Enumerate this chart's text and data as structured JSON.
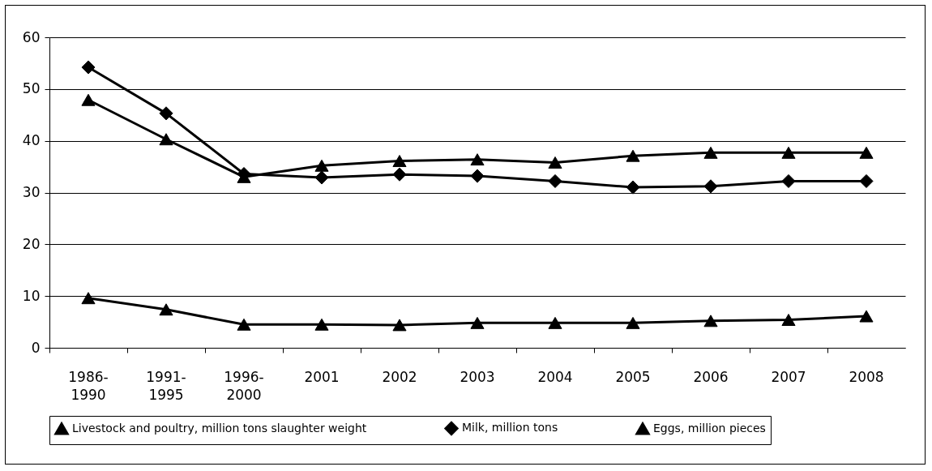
{
  "chart_data": {
    "type": "line",
    "categories": [
      "1986-1990",
      "1991-1995",
      "1996-2000",
      "2001",
      "2002",
      "2003",
      "2004",
      "2005",
      "2006",
      "2007",
      "2008"
    ],
    "series": [
      {
        "name": "Livestock and poultry, million tons slaughter weight",
        "color": "#000000",
        "marker": "triangle",
        "values": [
          9.6,
          7.4,
          4.5,
          4.5,
          4.4,
          4.8,
          4.8,
          4.8,
          5.2,
          5.4,
          6.1
        ]
      },
      {
        "name": "Milk, million tons",
        "color": "#000000",
        "marker": "diamond",
        "values": [
          54.2,
          45.3,
          33.6,
          32.9,
          33.5,
          33.2,
          32.2,
          31.0,
          31.2,
          32.2,
          32.2
        ]
      },
      {
        "name": "Eggs, million pieces",
        "color": "#000000",
        "marker": "triangle",
        "values": [
          47.9,
          40.3,
          33.0,
          35.2,
          36.1,
          36.4,
          35.8,
          37.1,
          37.7,
          37.7,
          37.7
        ]
      }
    ],
    "ylim": [
      0,
      60
    ],
    "yticks": [
      0,
      10,
      20,
      30,
      40,
      50,
      60
    ],
    "grid": "y",
    "legend": "bottom",
    "line_style": "solid"
  }
}
